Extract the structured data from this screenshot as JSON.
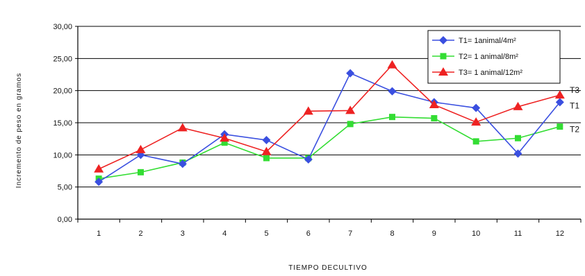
{
  "chart_data": {
    "type": "line",
    "xlabel": "TIEMPO DECULTIVO",
    "ylabel": "Incremento de peso en gramos",
    "ylim": [
      0,
      30
    ],
    "y_ticks": [
      "0,00",
      "5,00",
      "10,00",
      "15,00",
      "20,00",
      "25,00",
      "30,00"
    ],
    "categories": [
      "1",
      "2",
      "3",
      "4",
      "5",
      "6",
      "7",
      "8",
      "9",
      "10",
      "11",
      "12"
    ],
    "grid": "horizontal",
    "legend_position": "top-right",
    "series": [
      {
        "name": "T1= 1animal/4m²",
        "end_label": "T1",
        "color": "#3a4fe0",
        "marker": "diamond",
        "values": [
          5.8,
          10.0,
          8.6,
          13.2,
          12.3,
          9.3,
          22.7,
          19.9,
          18.2,
          17.3,
          10.2,
          18.2
        ]
      },
      {
        "name": "T2= 1 animal/8m²",
        "end_label": "T2",
        "color": "#33dd33",
        "marker": "square",
        "values": [
          6.3,
          7.3,
          8.8,
          11.9,
          9.5,
          9.5,
          14.8,
          15.9,
          15.7,
          12.1,
          12.6,
          14.4
        ]
      },
      {
        "name": "T3= 1 animal/12m²",
        "end_label": "T3",
        "color": "#ee2222",
        "marker": "triangle",
        "values": [
          7.8,
          10.8,
          14.2,
          12.6,
          10.5,
          16.8,
          16.9,
          24.0,
          17.8,
          15.1,
          17.5,
          19.3
        ]
      }
    ]
  }
}
